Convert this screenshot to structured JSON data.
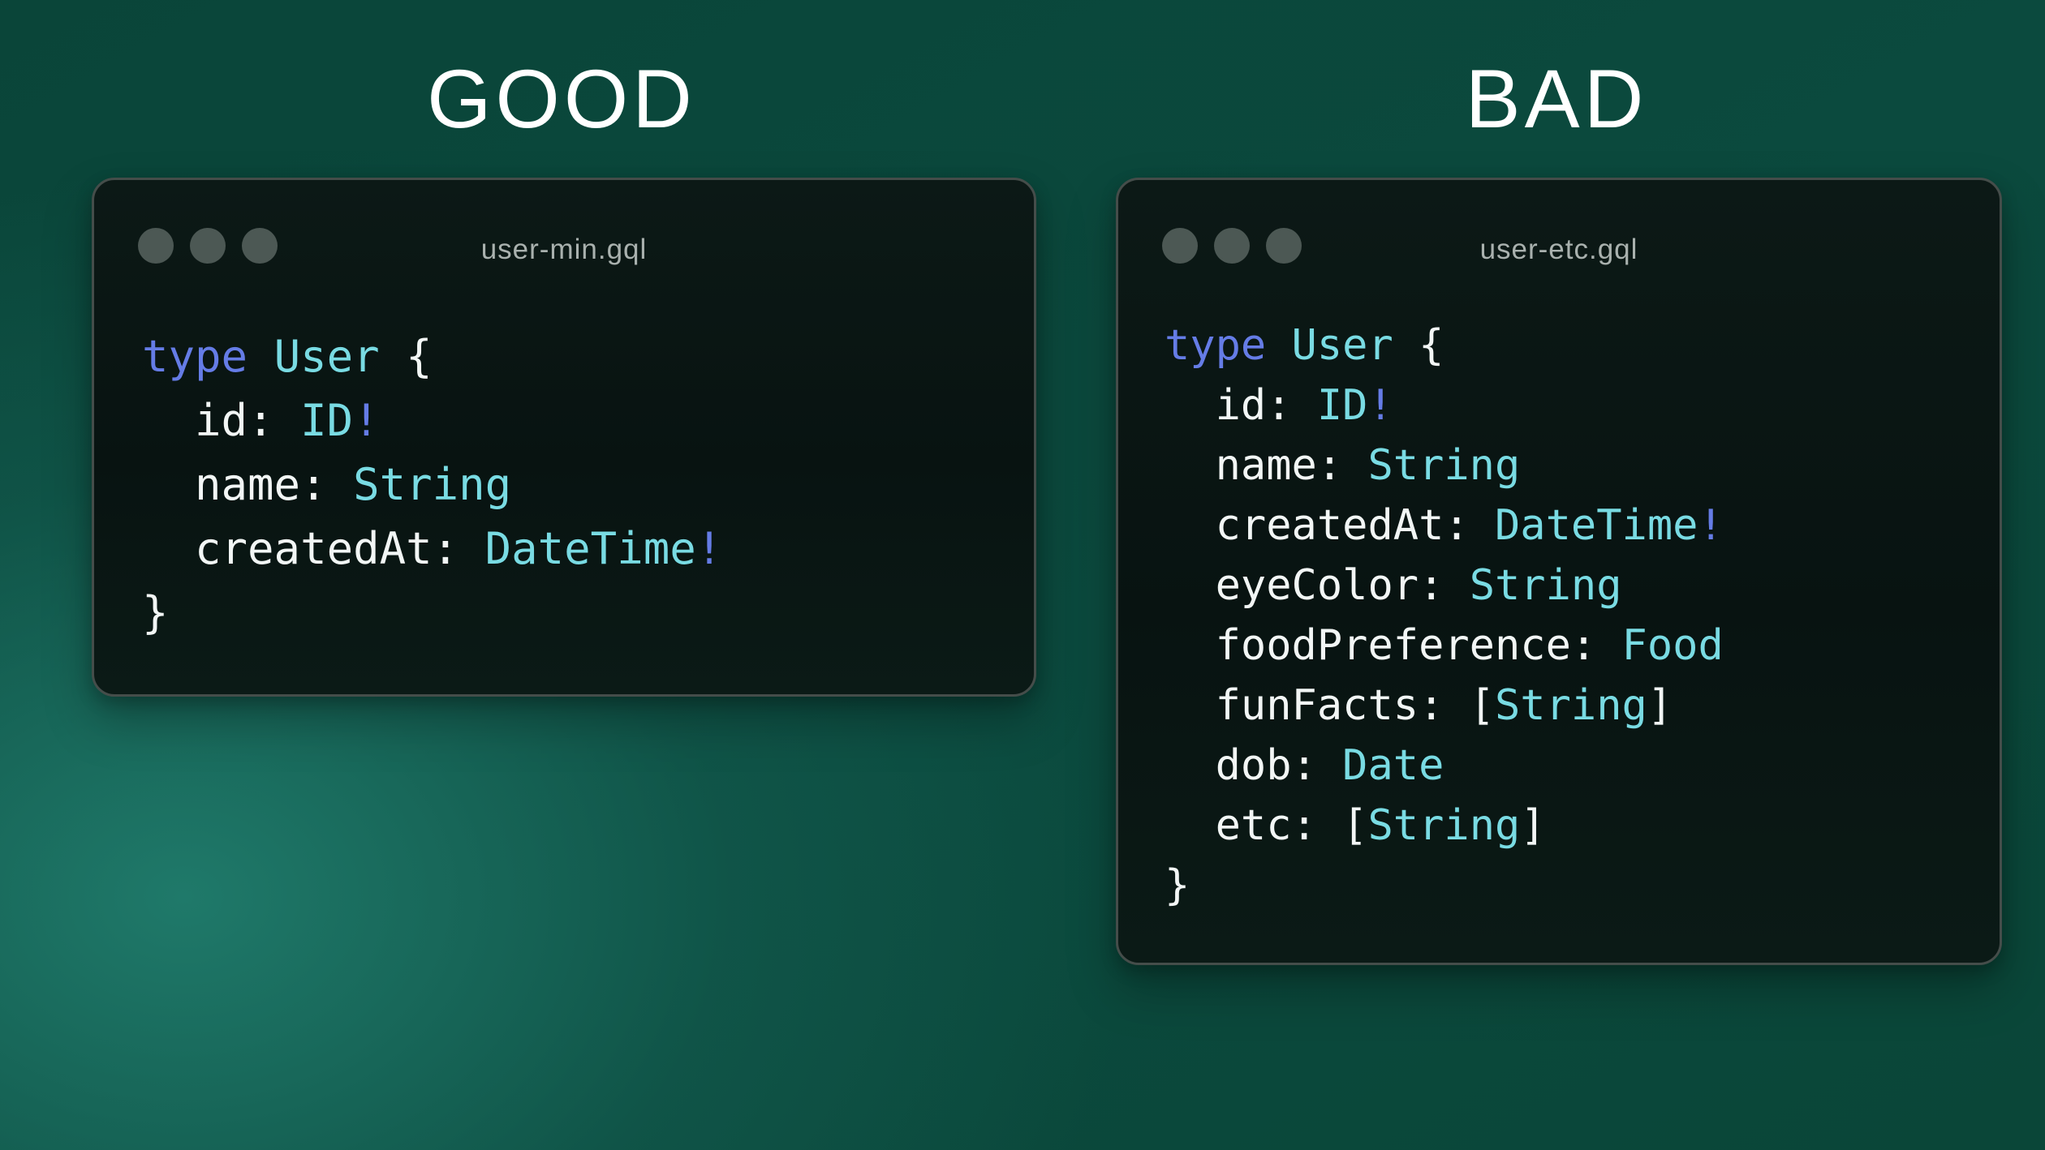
{
  "colors": {
    "background_base": "#0a4639",
    "background_glow": "#1a7164",
    "window_background": "#0a1613",
    "window_border": "#454d4a",
    "traffic_dot": "#4c5854",
    "window_title_text": "#a9b1ae",
    "heading_text": "#ffffff",
    "code_plain": "#f2f6f5",
    "code_keyword": "#657ce6",
    "code_type": "#79dbe3"
  },
  "windows": [
    {
      "heading": "GOOD",
      "title": "user-min.gql",
      "traffic_light_count": 3,
      "code": [
        {
          "tokens": [
            {
              "text": "type",
              "role": "keyword"
            },
            {
              "text": " ",
              "role": "plain"
            },
            {
              "text": "User",
              "role": "type"
            },
            {
              "text": " {",
              "role": "plain"
            }
          ]
        },
        {
          "tokens": [
            {
              "text": "  id: ",
              "role": "plain"
            },
            {
              "text": "ID",
              "role": "type"
            },
            {
              "text": "!",
              "role": "keyword"
            }
          ]
        },
        {
          "tokens": [
            {
              "text": "  name: ",
              "role": "plain"
            },
            {
              "text": "String",
              "role": "type"
            }
          ]
        },
        {
          "tokens": [
            {
              "text": "  createdAt: ",
              "role": "plain"
            },
            {
              "text": "DateTime",
              "role": "type"
            },
            {
              "text": "!",
              "role": "keyword"
            }
          ]
        },
        {
          "tokens": [
            {
              "text": "}",
              "role": "plain"
            }
          ]
        }
      ]
    },
    {
      "heading": "BAD",
      "title": "user-etc.gql",
      "traffic_light_count": 3,
      "code": [
        {
          "tokens": [
            {
              "text": "type",
              "role": "keyword"
            },
            {
              "text": " ",
              "role": "plain"
            },
            {
              "text": "User",
              "role": "type"
            },
            {
              "text": " {",
              "role": "plain"
            }
          ]
        },
        {
          "tokens": [
            {
              "text": "  id: ",
              "role": "plain"
            },
            {
              "text": "ID",
              "role": "type"
            },
            {
              "text": "!",
              "role": "keyword"
            }
          ]
        },
        {
          "tokens": [
            {
              "text": "  name: ",
              "role": "plain"
            },
            {
              "text": "String",
              "role": "type"
            }
          ]
        },
        {
          "tokens": [
            {
              "text": "  createdAt: ",
              "role": "plain"
            },
            {
              "text": "DateTime",
              "role": "type"
            },
            {
              "text": "!",
              "role": "keyword"
            }
          ]
        },
        {
          "tokens": [
            {
              "text": "  eyeColor: ",
              "role": "plain"
            },
            {
              "text": "String",
              "role": "type"
            }
          ]
        },
        {
          "tokens": [
            {
              "text": "  foodPreference: ",
              "role": "plain"
            },
            {
              "text": "Food",
              "role": "type"
            }
          ]
        },
        {
          "tokens": [
            {
              "text": "  funFacts: ",
              "role": "plain"
            },
            {
              "text": "[",
              "role": "plain"
            },
            {
              "text": "String",
              "role": "type"
            },
            {
              "text": "]",
              "role": "plain"
            }
          ]
        },
        {
          "tokens": [
            {
              "text": "  dob: ",
              "role": "plain"
            },
            {
              "text": "Date",
              "role": "type"
            }
          ]
        },
        {
          "tokens": [
            {
              "text": "  etc: ",
              "role": "plain"
            },
            {
              "text": "[",
              "role": "plain"
            },
            {
              "text": "String",
              "role": "type"
            },
            {
              "text": "]",
              "role": "plain"
            }
          ]
        },
        {
          "tokens": [
            {
              "text": "}",
              "role": "plain"
            }
          ]
        }
      ]
    }
  ]
}
